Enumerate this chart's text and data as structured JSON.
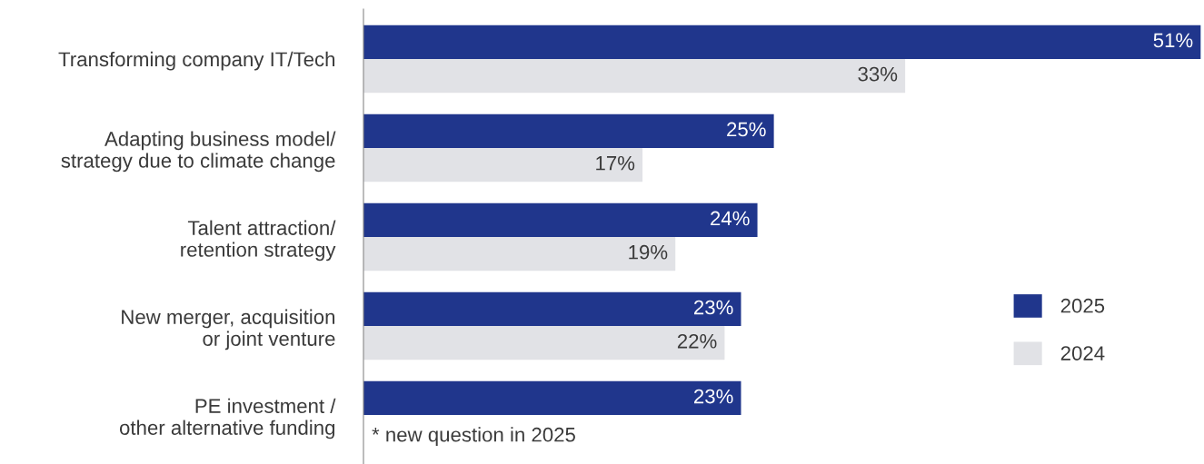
{
  "chart_data": {
    "type": "bar",
    "orientation": "horizontal",
    "categories": [
      "Transforming company IT/Tech",
      "Adapting business model/\nstrategy due to climate change",
      "Talent attraction/\nretention strategy",
      "New merger, acquisition\nor joint venture",
      "PE investment /\nother alternative funding"
    ],
    "series": [
      {
        "name": "2025",
        "color": "#20368c",
        "values": [
          51,
          25,
          24,
          23,
          23
        ],
        "value_labels": [
          "51%",
          "25%",
          "24%",
          "23%",
          "23%"
        ]
      },
      {
        "name": "2024",
        "color": "#e1e2e6",
        "values": [
          33,
          17,
          19,
          22,
          null
        ],
        "value_labels": [
          "33%",
          "17%",
          "19%",
          "22%",
          null
        ]
      }
    ],
    "tick_labels": "y",
    "grid": false,
    "legend": "bottom right",
    "annotations": [
      "* new question in 2025"
    ]
  }
}
